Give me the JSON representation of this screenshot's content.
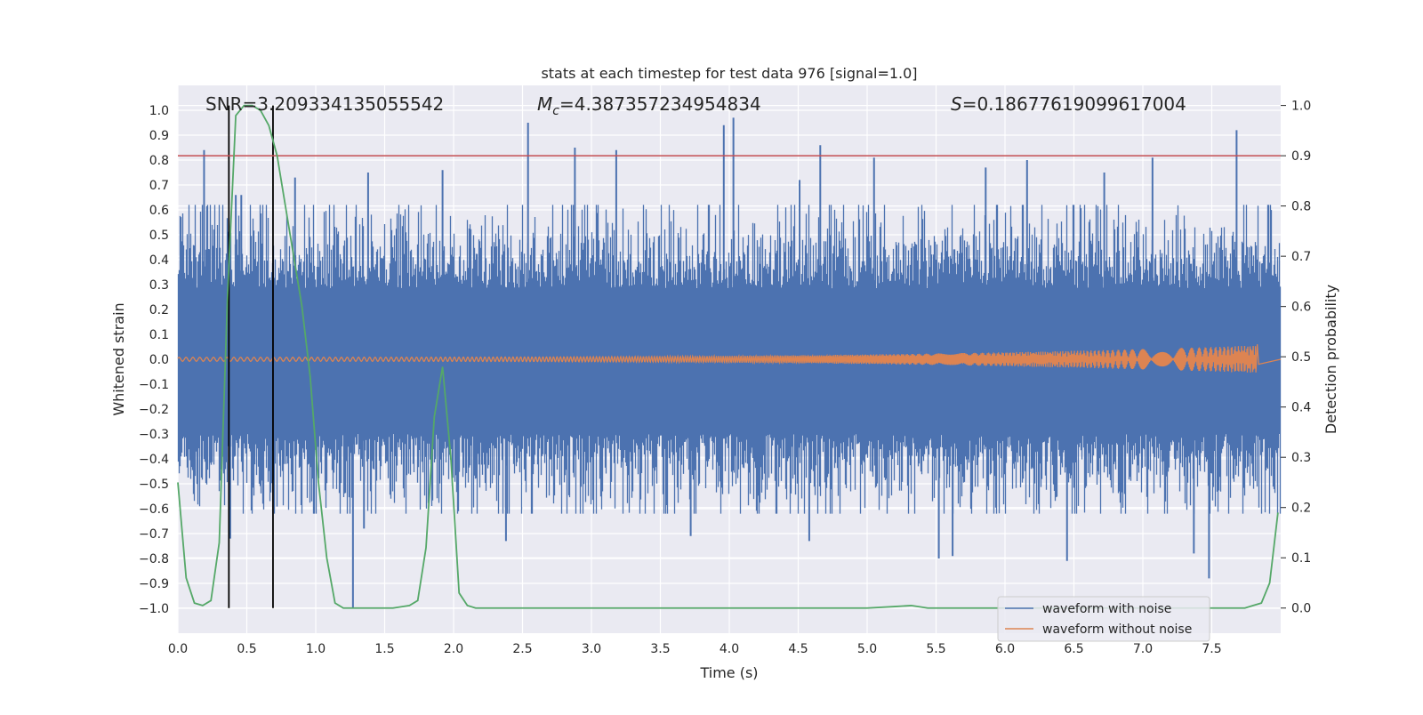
{
  "chart_data": {
    "type": "line",
    "title": "stats at each timestep for test data 976 [signal=1.0]",
    "xlabel": "Time (s)",
    "ylabel": "Whitened strain",
    "ylabel_right": "Detection probability",
    "xlim": [
      0.0,
      8.0
    ],
    "ylim": [
      -1.1,
      1.1
    ],
    "ylim_right": [
      -0.05,
      1.04
    ],
    "x_ticks": [
      0.0,
      0.5,
      1.0,
      1.5,
      2.0,
      2.5,
      3.0,
      3.5,
      4.0,
      4.5,
      5.0,
      5.5,
      6.0,
      6.5,
      7.0,
      7.5
    ],
    "x_tick_labels": [
      "0.0",
      "0.5",
      "1.0",
      "1.5",
      "2.0",
      "2.5",
      "3.0",
      "3.5",
      "4.0",
      "4.5",
      "5.0",
      "5.5",
      "6.0",
      "6.5",
      "7.0",
      "7.5"
    ],
    "y_ticks": [
      -1.0,
      -0.9,
      -0.8,
      -0.7,
      -0.6,
      -0.5,
      -0.4,
      -0.3,
      -0.2,
      -0.1,
      0.0,
      0.1,
      0.2,
      0.3,
      0.4,
      0.5,
      0.6,
      0.7,
      0.8,
      0.9,
      1.0
    ],
    "y_tick_labels": [
      "−1.0",
      "−0.9",
      "−0.8",
      "−0.7",
      "−0.6",
      "−0.5",
      "−0.4",
      "−0.3",
      "−0.2",
      "−0.1",
      "0.0",
      "0.1",
      "0.2",
      "0.3",
      "0.4",
      "0.5",
      "0.6",
      "0.7",
      "0.8",
      "0.9",
      "1.0"
    ],
    "y_right_ticks": [
      0.0,
      0.1,
      0.2,
      0.3,
      0.4,
      0.5,
      0.6,
      0.7,
      0.8,
      0.9,
      1.0
    ],
    "y_right_tick_labels": [
      "0.0",
      "0.1",
      "0.2",
      "0.3",
      "0.4",
      "0.5",
      "0.6",
      "0.7",
      "0.8",
      "0.9",
      "1.0"
    ],
    "annotations": {
      "snr": "SNR=3.209334135055542",
      "mc_symbol": "M",
      "mc_sub": "c",
      "mc_value": "=4.387357234954834",
      "s_symbol": "S",
      "s_value": "=0.18677619099617004"
    },
    "vertical_markers_x": [
      0.37,
      0.69
    ],
    "threshold_right_y": 0.9,
    "legend": [
      {
        "label": "waveform with noise",
        "color": "#4c72b0"
      },
      {
        "label": "waveform without noise",
        "color": "#dd8452"
      }
    ],
    "series": [
      {
        "name": "waveform with noise",
        "color": "#4c72b0",
        "axis": "left",
        "duration": 8.0,
        "sample_rate": 2048,
        "envelope_pos": 0.38,
        "envelope_neg": -0.4,
        "spikes": [
          {
            "x": 0.19,
            "y": 0.84
          },
          {
            "x": 0.42,
            "y": 0.66
          },
          {
            "x": 0.46,
            "y": 0.66
          },
          {
            "x": 0.38,
            "y": -0.72
          },
          {
            "x": 0.85,
            "y": 0.73
          },
          {
            "x": 1.27,
            "y": -1.0
          },
          {
            "x": 1.35,
            "y": -0.68
          },
          {
            "x": 1.38,
            "y": 0.75
          },
          {
            "x": 1.92,
            "y": 0.76
          },
          {
            "x": 2.38,
            "y": -0.73
          },
          {
            "x": 2.54,
            "y": 0.95
          },
          {
            "x": 2.88,
            "y": 0.85
          },
          {
            "x": 3.18,
            "y": 0.84
          },
          {
            "x": 3.72,
            "y": -0.71
          },
          {
            "x": 3.96,
            "y": 0.94
          },
          {
            "x": 4.03,
            "y": 0.97
          },
          {
            "x": 4.51,
            "y": 0.72
          },
          {
            "x": 4.58,
            "y": -0.73
          },
          {
            "x": 4.66,
            "y": 0.86
          },
          {
            "x": 5.05,
            "y": 0.81
          },
          {
            "x": 5.52,
            "y": -0.8
          },
          {
            "x": 5.62,
            "y": -0.79
          },
          {
            "x": 5.86,
            "y": 0.77
          },
          {
            "x": 6.16,
            "y": 0.8
          },
          {
            "x": 6.45,
            "y": -0.81
          },
          {
            "x": 6.72,
            "y": 0.75
          },
          {
            "x": 7.07,
            "y": 0.81
          },
          {
            "x": 7.37,
            "y": -0.78
          },
          {
            "x": 7.48,
            "y": -0.88
          },
          {
            "x": 7.68,
            "y": 0.92
          }
        ]
      },
      {
        "name": "waveform without noise",
        "color": "#dd8452",
        "axis": "left",
        "amp_start": 0.008,
        "amp_end": 0.055,
        "merger_x": 7.82,
        "freq_start": 20,
        "freq_end": 180
      },
      {
        "name": "detection probability",
        "color": "#55a868",
        "axis": "right",
        "x": [
          0.0,
          0.06,
          0.12,
          0.18,
          0.24,
          0.3,
          0.36,
          0.42,
          0.48,
          0.54,
          0.6,
          0.66,
          0.72,
          0.78,
          0.84,
          0.9,
          0.96,
          1.02,
          1.08,
          1.14,
          1.2,
          1.32,
          1.56,
          1.68,
          1.74,
          1.8,
          1.86,
          1.92,
          1.98,
          2.04,
          2.1,
          2.16,
          2.4,
          3.0,
          4.0,
          5.0,
          5.2,
          5.32,
          5.44,
          5.6,
          6.0,
          7.0,
          7.5,
          7.74,
          7.8,
          7.86,
          7.92,
          7.98
        ],
        "y": [
          0.25,
          0.06,
          0.01,
          0.005,
          0.015,
          0.13,
          0.62,
          0.98,
          1.0,
          1.0,
          0.99,
          0.96,
          0.9,
          0.8,
          0.7,
          0.6,
          0.46,
          0.25,
          0.1,
          0.01,
          0.0,
          0.0,
          0.0,
          0.005,
          0.015,
          0.12,
          0.38,
          0.48,
          0.3,
          0.03,
          0.005,
          0.0,
          0.0,
          0.0,
          0.0,
          0.0,
          0.003,
          0.005,
          0.0,
          0.0,
          0.0,
          0.0,
          0.0,
          0.0,
          0.005,
          0.01,
          0.05,
          0.19
        ]
      }
    ]
  }
}
